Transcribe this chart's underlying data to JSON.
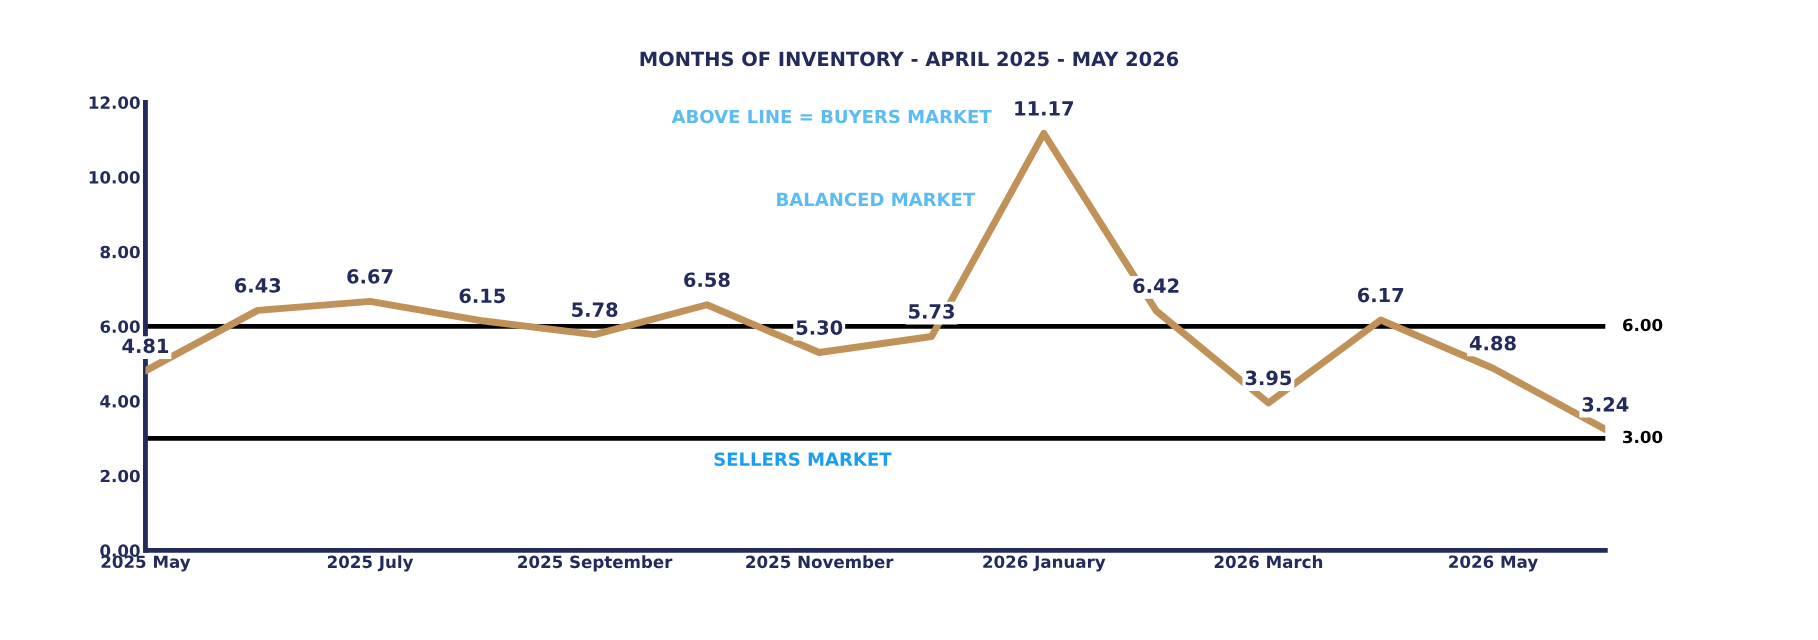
{
  "chart_data": {
    "type": "line",
    "title": "MONTHS OF INVENTORY - APRIL 2025 - MAY 2026",
    "categories": [
      "2025 May",
      null,
      "2025 July",
      null,
      "2025 September",
      null,
      "2025 November",
      null,
      "2026 January",
      null,
      "2026 March",
      null,
      "2026 May",
      null
    ],
    "series": [
      {
        "color": "#c09259",
        "values": [
          4.81,
          6.43,
          6.67,
          6.15,
          5.78,
          6.58,
          5.3,
          5.73,
          11.17,
          6.42,
          3.95,
          6.17,
          4.88,
          3.24
        ],
        "value_labels": [
          "4.81",
          "6.43",
          "6.67",
          "6.15",
          "5.78",
          "6.58",
          "5.30",
          "5.73",
          "11.17",
          "6.42",
          "3.95",
          "6.17",
          "4.88",
          "3.24"
        ]
      }
    ],
    "ylim": [
      0,
      12
    ],
    "yticks": [
      {
        "value": 0,
        "label": "0.00"
      },
      {
        "value": 2,
        "label": "2.00"
      },
      {
        "value": 4,
        "label": "4.00"
      },
      {
        "value": 6,
        "label": "6.00"
      },
      {
        "value": 8,
        "label": "8.00"
      },
      {
        "value": 10,
        "label": "10.00"
      },
      {
        "value": 12,
        "label": "12.00"
      }
    ],
    "ref_lines": [
      {
        "axis": "y",
        "value": 6,
        "label": "6.00",
        "color": "#000000"
      },
      {
        "axis": "y",
        "value": 3,
        "label": "3.00",
        "color": "#000000"
      }
    ],
    "annotations": [
      "ABOVE LINE = BUYERS MARKET",
      "BALANCED MARKET",
      "SELLERS MARKET"
    ],
    "grid": false,
    "legend": false,
    "marker": "none",
    "line_style": "solid"
  }
}
